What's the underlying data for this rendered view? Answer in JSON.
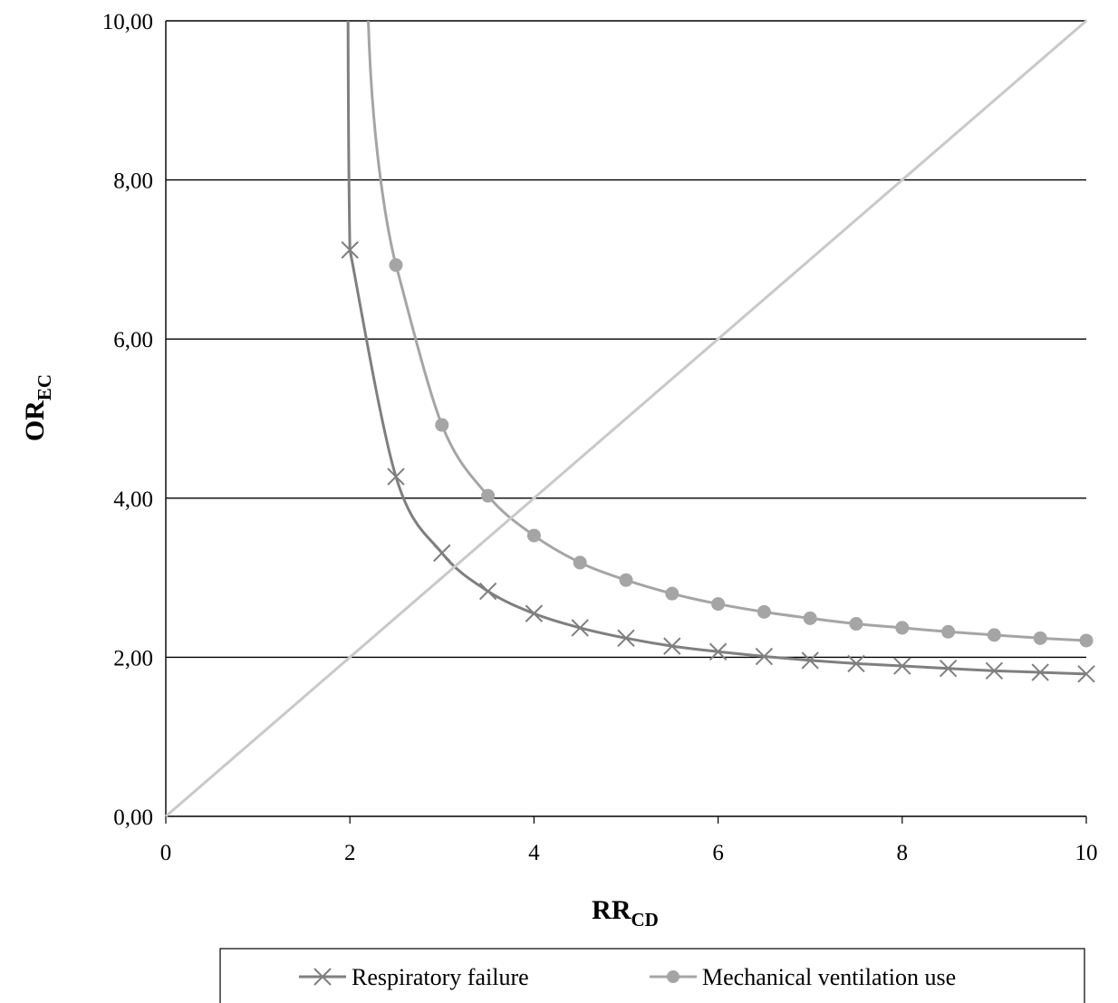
{
  "chart_data": {
    "type": "line",
    "xlabel": {
      "main": "RR",
      "sub": "CD"
    },
    "ylabel": {
      "main": "OR",
      "sub": "EC"
    },
    "xlim": [
      0,
      10
    ],
    "ylim": [
      0,
      10
    ],
    "x_ticks": [
      "0",
      "2",
      "4",
      "6",
      "8",
      "10"
    ],
    "y_ticks": [
      "0,00",
      "2,00",
      "4,00",
      "6,00",
      "8,00",
      "10,00"
    ],
    "grid": "horizontal",
    "legend_position": "bottom",
    "series": [
      {
        "name": "Respiratory failure",
        "marker": "x",
        "color": "#7f7f7f",
        "points": [
          [
            2.0,
            7.12
          ],
          [
            2.5,
            4.27
          ],
          [
            3.0,
            3.31
          ],
          [
            3.5,
            2.83
          ],
          [
            4.0,
            2.55
          ],
          [
            4.5,
            2.37
          ],
          [
            5.0,
            2.24
          ],
          [
            5.5,
            2.14
          ],
          [
            6.0,
            2.07
          ],
          [
            6.5,
            2.01
          ],
          [
            7.0,
            1.96
          ],
          [
            7.5,
            1.92
          ],
          [
            8.0,
            1.89
          ],
          [
            8.5,
            1.86
          ],
          [
            9.0,
            1.83
          ],
          [
            9.5,
            1.81
          ],
          [
            10.0,
            1.79
          ]
        ]
      },
      {
        "name": "Mechanical ventilation use",
        "marker": "circle",
        "color": "#a5a5a5",
        "points": [
          [
            2.5,
            6.93
          ],
          [
            3.0,
            4.92
          ],
          [
            3.5,
            4.03
          ],
          [
            4.0,
            3.53
          ],
          [
            4.5,
            3.19
          ],
          [
            5.0,
            2.97
          ],
          [
            5.5,
            2.8
          ],
          [
            6.0,
            2.67
          ],
          [
            6.5,
            2.57
          ],
          [
            7.0,
            2.49
          ],
          [
            7.5,
            2.42
          ],
          [
            8.0,
            2.37
          ],
          [
            8.5,
            2.32
          ],
          [
            9.0,
            2.28
          ],
          [
            9.5,
            2.24
          ],
          [
            10.0,
            2.21
          ]
        ]
      },
      {
        "name": "",
        "marker": "none",
        "color": "#c9c9c9",
        "points": [
          [
            0,
            0
          ],
          [
            10,
            10
          ]
        ]
      }
    ],
    "asymptote_curves": [
      {
        "series": "Respiratory failure",
        "from": [
          1.98,
          10.0
        ],
        "to": [
          2.0,
          7.12
        ]
      },
      {
        "series": "Mechanical ventilation use",
        "from": [
          2.2,
          10.0
        ],
        "to": [
          2.5,
          6.93
        ]
      }
    ]
  }
}
